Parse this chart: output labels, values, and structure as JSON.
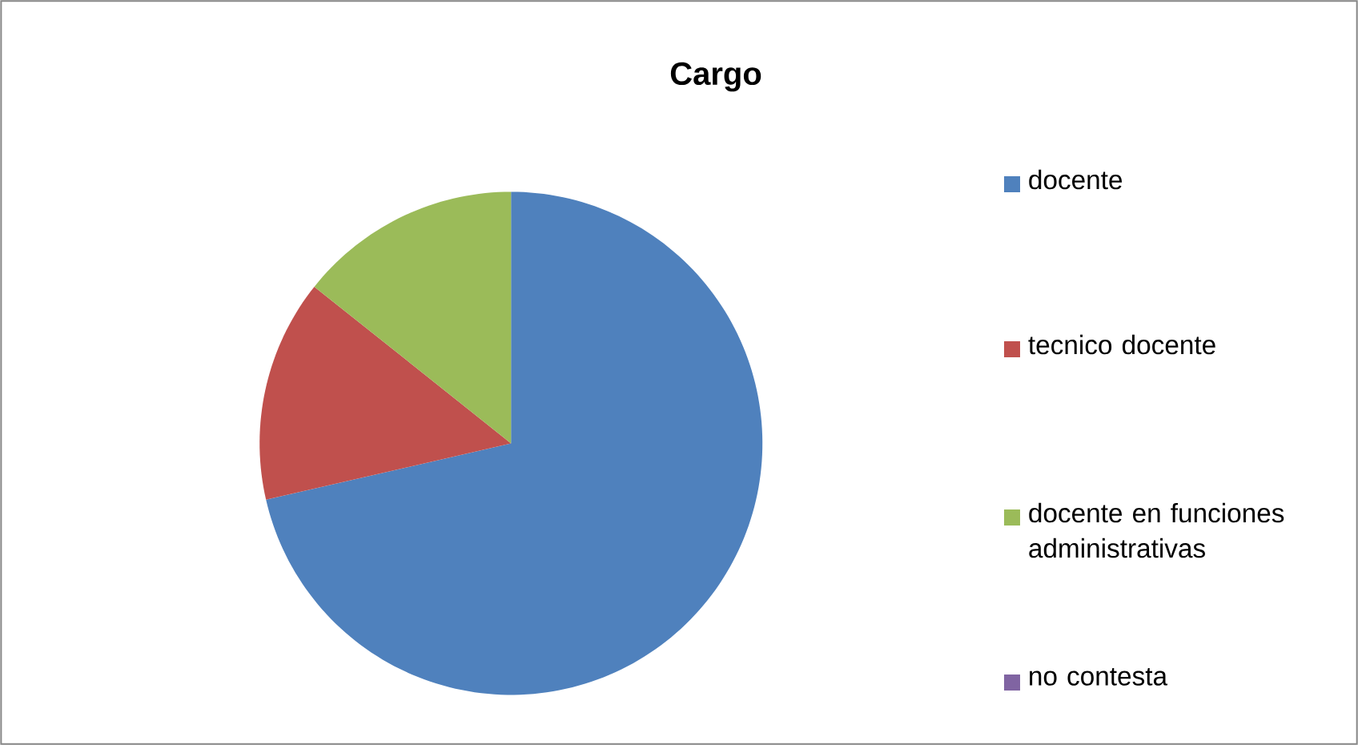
{
  "chart_data": {
    "type": "pie",
    "title": "Cargo",
    "categories": [
      "docente",
      "tecnico docente",
      "docente en funciones administrativas",
      "no contesta"
    ],
    "values": [
      71.4,
      14.3,
      14.3,
      0
    ],
    "colors": [
      "#4f81bd",
      "#c0504d",
      "#9bbb59",
      "#8064a2"
    ],
    "legend": "right"
  }
}
